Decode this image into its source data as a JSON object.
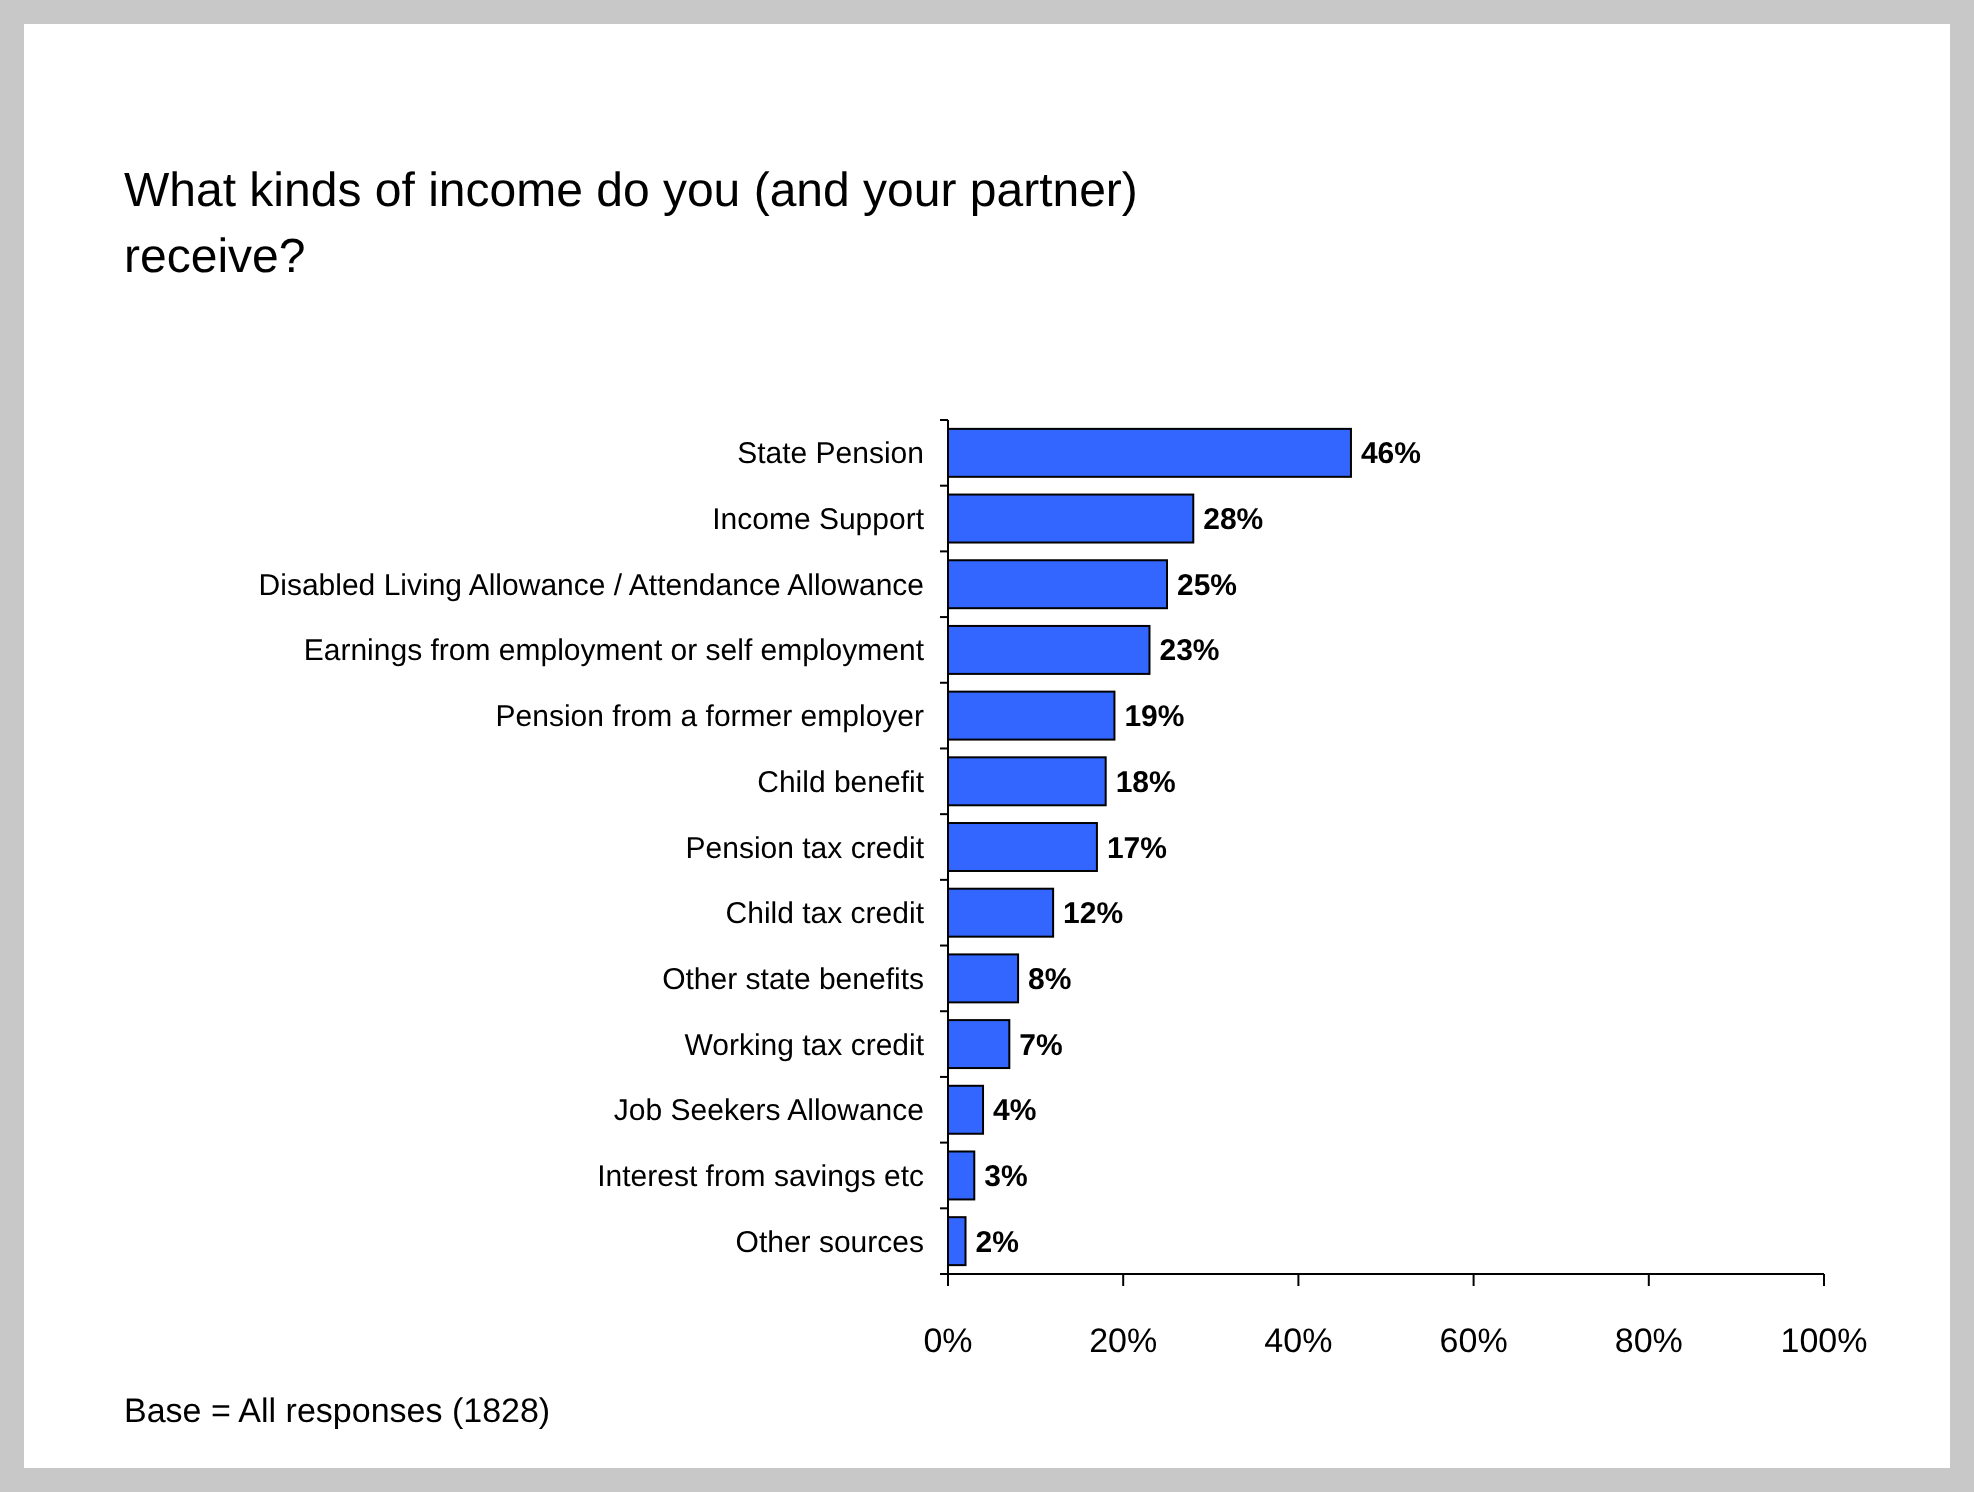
{
  "chart_data": {
    "type": "bar",
    "orientation": "horizontal",
    "title": "What kinds of income do you (and your partner) receive?",
    "categories": [
      "State Pension",
      "Income Support",
      "Disabled Living Allowance / Attendance Allowance",
      "Earnings from employment or self employment",
      "Pension from a former employer",
      "Child benefit",
      "Pension tax credit",
      "Child tax credit",
      "Other state benefits",
      "Working tax credit",
      "Job Seekers Allowance",
      "Interest from savings etc",
      "Other sources"
    ],
    "values": [
      46,
      28,
      25,
      23,
      19,
      18,
      17,
      12,
      8,
      7,
      4,
      3,
      2
    ],
    "value_labels": [
      "46%",
      "28%",
      "25%",
      "23%",
      "19%",
      "18%",
      "17%",
      "12%",
      "8%",
      "7%",
      "4%",
      "3%",
      "2%"
    ],
    "color": "#3366ff",
    "xlim": [
      0,
      100
    ],
    "xticks": [
      {
        "value": 0,
        "label": "0%"
      },
      {
        "value": 20,
        "label": "20%"
      },
      {
        "value": 40,
        "label": "40%"
      },
      {
        "value": 60,
        "label": "60%"
      },
      {
        "value": 80,
        "label": "80%"
      },
      {
        "value": 100,
        "label": "100%"
      }
    ],
    "grid": false,
    "annotations": [
      "Base = All responses (1828)"
    ]
  }
}
